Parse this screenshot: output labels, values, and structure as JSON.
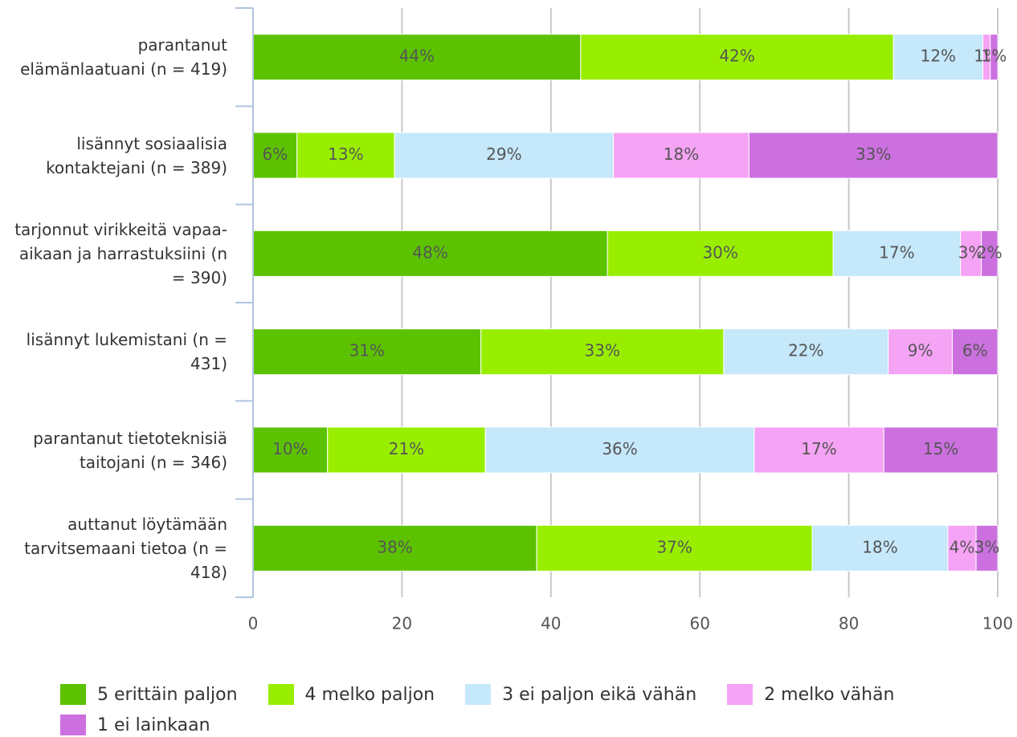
{
  "chart_data": {
    "type": "stacked-barh",
    "categories": [
      "parantanut elämänlaatuani (n = 419)",
      "lisännyt sosiaalisia kontaktejani (n = 389)",
      "tarjonnut virikkeitä vapaa-aikaan ja harrastuksiini (n = 390)",
      "lisännyt lukemistani (n = 431)",
      "parantanut tietoteknisiä taitojani (n = 346)",
      "auttanut löytämään tarvitsemaani tietoa (n = 418)"
    ],
    "series": [
      {
        "name": "5 erittäin paljon",
        "color": "#5cc200",
        "values": [
          44,
          5.9,
          47.6,
          30.6,
          10,
          38.1
        ],
        "value_labels": [
          "44%",
          "6%",
          "48%",
          "31%",
          "10%",
          "38%"
        ]
      },
      {
        "name": "4 melko paljon",
        "color": "#99ee00",
        "values": [
          42,
          13.1,
          30.3,
          32.6,
          21.2,
          37
        ],
        "value_labels": [
          "42%",
          "13%",
          "30%",
          "33%",
          "21%",
          "37%"
        ]
      },
      {
        "name": "3 ei paljon eikä vähän",
        "color": "#c5e8fb",
        "values": [
          12,
          29.4,
          17.1,
          22.1,
          36.1,
          18.2
        ],
        "value_labels": [
          "12%",
          "29%",
          "17%",
          "22%",
          "36%",
          "18%"
        ]
      },
      {
        "name": "2 melko vähän",
        "color": "#f5a3f5",
        "values": [
          1,
          18.2,
          2.8,
          8.6,
          17.4,
          3.8
        ],
        "value_labels": [
          "1%",
          "18%",
          "3%",
          "9%",
          "17%",
          "4%"
        ]
      },
      {
        "name": "1 ei lainkaan",
        "color": "#cc70e0",
        "values": [
          1,
          33.4,
          2.2,
          6.1,
          15.3,
          2.9
        ],
        "value_labels": [
          "1%",
          "33%",
          "2%",
          "6%",
          "15%",
          "3%"
        ]
      }
    ],
    "xlim": [
      0,
      100
    ],
    "xticks": [
      0,
      20,
      40,
      60,
      80,
      100
    ],
    "grid": true,
    "legend": "bottom"
  }
}
